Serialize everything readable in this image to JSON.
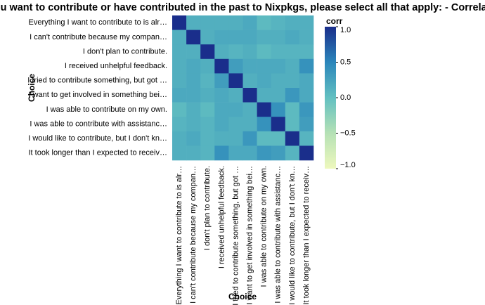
{
  "chart_data": {
    "type": "heatmap",
    "title": "If you want to contribute or have contributed in the past to Nixpkgs, please select all that apply: - Correlation",
    "x_label": "Choice",
    "y_label": "Choice",
    "colorbar_label": "corr",
    "categories": [
      "Everything I want to contribute to is alr…",
      "I can't contribute because my compan…",
      "I don't plan to contribute.",
      "I received unhelpful feedback.",
      "I tried to contribute something, but got …",
      "I want to get involved in something bei…",
      "I was able to contribute on my own.",
      "I was able to contribute with assistanc…",
      "I would like to contribute, but I don't kn…",
      "It took longer than I expected to receiv…"
    ],
    "values": [
      [
        1,
        0.15,
        0.15,
        0.15,
        0.15,
        0.2,
        0.05,
        0.1,
        0.15,
        0.15
      ],
      [
        0.15,
        1,
        0.15,
        0.2,
        0.2,
        0.2,
        0.15,
        0.15,
        0.2,
        0.15
      ],
      [
        0.15,
        0.15,
        1,
        0.15,
        0.1,
        0.15,
        0.05,
        0.1,
        0.1,
        0.1
      ],
      [
        0.15,
        0.2,
        0.15,
        1,
        0.3,
        0.2,
        0.2,
        0.2,
        0.15,
        0.4
      ],
      [
        0.15,
        0.2,
        0.1,
        0.3,
        1,
        0.15,
        0.2,
        0.15,
        0.15,
        0.2
      ],
      [
        0.2,
        0.2,
        0.15,
        0.2,
        0.15,
        1,
        0.15,
        0.15,
        0.35,
        0.2
      ],
      [
        0.05,
        0.15,
        0.05,
        0.2,
        0.2,
        0.15,
        1,
        0.4,
        0.05,
        0.35
      ],
      [
        0.1,
        0.15,
        0.1,
        0.2,
        0.15,
        0.15,
        0.4,
        1,
        0.05,
        0.3
      ],
      [
        0.15,
        0.2,
        0.1,
        0.15,
        0.15,
        0.35,
        0.05,
        0.05,
        1,
        0.1
      ],
      [
        0.15,
        0.15,
        0.1,
        0.4,
        0.2,
        0.2,
        0.35,
        0.3,
        0.1,
        1
      ]
    ],
    "zlim": [
      -1,
      1
    ],
    "zticks": [
      {
        "value": 1,
        "label": "1.0"
      },
      0.5,
      {
        "value": 0,
        "label": "0.0"
      },
      {
        "value": -0.5,
        "label": "−0.5"
      },
      {
        "value": -1,
        "label": "−1.0"
      }
    ],
    "colors": [
      "#eef8bd",
      "#b5e1b5",
      "#62c0c1",
      "#2b86bb",
      "#1a2e8b"
    ]
  }
}
